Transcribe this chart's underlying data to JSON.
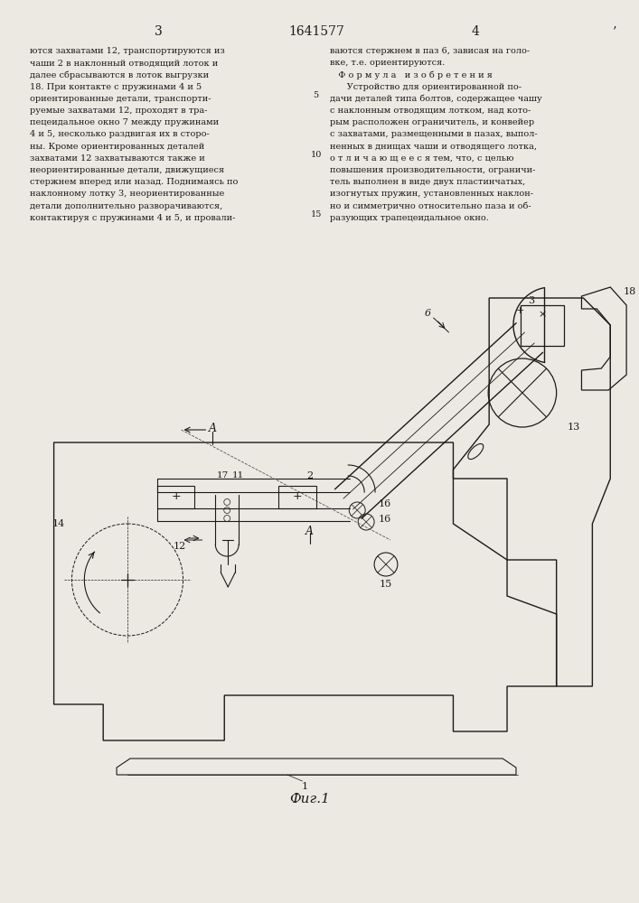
{
  "page_num_left": "3",
  "patent_num": "1641577",
  "page_num_right": "4",
  "bg_color": "#ece9e3",
  "text_color": "#1a1a1a",
  "fig_label": "Фиг.1",
  "col1_text": [
    "ются захватами 12, транспортируются из",
    "чаши 2 в наклонный отводящий лоток и",
    "далее сбрасываются в лоток выгрузки",
    "18. При контакте с пружинами 4 и 5",
    "ориентированные детали, транспорти-",
    "руемые захватами 12, проходят в тра-",
    "пецеидальное окно 7 между пружинами",
    "4 и 5, несколько раздвигая их в сторо-",
    "ны. Кроме ориентированных деталей",
    "захватами 12 захватываются также и",
    "неориентированные детали, движущиеся",
    "стержнем вперед или назад. Поднимаясь по",
    "наклонному лотку 3, неориентированные",
    "детали дополнительно разворачиваются,",
    "контактируя с пружинами 4 и 5, и провали-"
  ],
  "col2_text": [
    "ваются стержнем в паз 6, зависая на голо-",
    "вке, т.е. ориентируются.",
    "   Ф о р м у л а   и з о б р е т е н и я",
    "      Устройство для ориентированной по-",
    "дачи деталей типа болтов, содержащее чашу",
    "с наклонным отводящим лотком, над кото-",
    "рым расположен ограничитель, и конвейер",
    "с захватами, размещенными в пазах, выпол-",
    "ненных в днищах чаши и отводящего лотка,",
    "о т л и ч а ю щ е е с я тем, что, с целью",
    "повышения производительности, ограничи-",
    "тель выполнен в виде двух пластинчатых,",
    "изогнутых пружин, установленных наклон-",
    "но и симметрично относительно паза и об-",
    "разующих трапецеидальное окно."
  ],
  "line_num_5": "5",
  "line_num_10": "10",
  "line_num_15": "15"
}
